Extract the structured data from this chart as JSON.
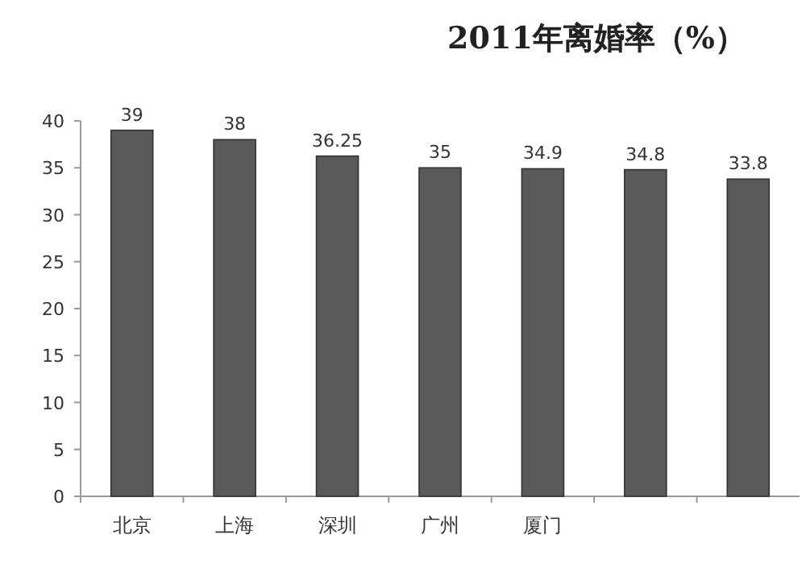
{
  "chart_data": {
    "type": "bar",
    "title": "2011年离婚率（%）",
    "categories": [
      "北京",
      "上海",
      "深圳",
      "广州",
      "厦门",
      null,
      null
    ],
    "values": [
      39,
      38,
      36.25,
      35,
      34.9,
      34.8,
      33.8
    ],
    "color": "#595959",
    "ylim": [
      0,
      40
    ],
    "yticks": [
      0,
      5,
      10,
      15,
      20,
      25,
      30,
      35,
      40
    ],
    "data_labels": true
  }
}
